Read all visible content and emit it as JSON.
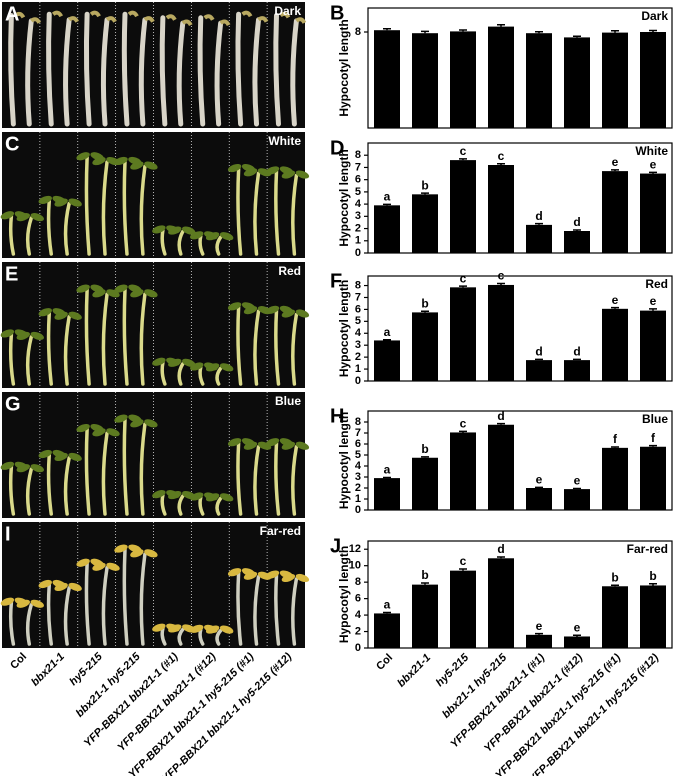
{
  "photo_panels": [
    "A",
    "C",
    "E",
    "G",
    "I"
  ],
  "chart_data": [
    {
      "type": "bar",
      "panel": "B",
      "title": "Dark",
      "y_label": "Hypocotyl length",
      "values": [
        8.15,
        7.9,
        8.05,
        8.45,
        7.9,
        7.55,
        7.95,
        8.0
      ],
      "errors": [
        0.12,
        0.15,
        0.12,
        0.15,
        0.12,
        0.1,
        0.15,
        0.12
      ],
      "ylim": [
        0,
        10
      ],
      "yticks": [
        8
      ],
      "color": "#000000"
    },
    {
      "type": "bar",
      "panel": "D",
      "title": "White",
      "y_label": "Hypocotyl length",
      "values": [
        3.9,
        4.8,
        7.6,
        7.2,
        2.3,
        1.8,
        6.7,
        6.5
      ],
      "errors": [
        0.08,
        0.1,
        0.1,
        0.1,
        0.1,
        0.08,
        0.1,
        0.1
      ],
      "letters": [
        "a",
        "b",
        "c",
        "c",
        "d",
        "d",
        "e",
        "e"
      ],
      "ylim": [
        0,
        9
      ],
      "yticks": [
        0,
        1,
        2,
        3,
        4,
        5,
        6,
        7,
        8
      ],
      "color": "#000000"
    },
    {
      "type": "bar",
      "panel": "F",
      "title": "Red",
      "y_label": "Hypocotyl length",
      "values": [
        3.4,
        5.75,
        7.85,
        8.05,
        1.75,
        1.75,
        6.05,
        5.9
      ],
      "errors": [
        0.06,
        0.1,
        0.1,
        0.12,
        0.06,
        0.06,
        0.1,
        0.15
      ],
      "letters": [
        "a",
        "b",
        "c",
        "c",
        "d",
        "d",
        "e",
        "e"
      ],
      "ylim": [
        0,
        8.8
      ],
      "yticks": [
        0,
        1,
        2,
        3,
        4,
        5,
        6,
        7,
        8
      ],
      "color": "#000000"
    },
    {
      "type": "bar",
      "panel": "H",
      "title": "Blue",
      "y_label": "Hypocotyl length",
      "values": [
        2.9,
        4.75,
        7.05,
        7.75,
        2.0,
        1.9,
        5.65,
        5.75
      ],
      "errors": [
        0.06,
        0.08,
        0.1,
        0.1,
        0.06,
        0.06,
        0.08,
        0.1
      ],
      "letters": [
        "a",
        "b",
        "c",
        "d",
        "e",
        "e",
        "f",
        "f"
      ],
      "ylim": [
        0,
        9
      ],
      "yticks": [
        0,
        1,
        2,
        3,
        4,
        5,
        6,
        7,
        8
      ],
      "color": "#000000"
    },
    {
      "type": "bar",
      "panel": "J",
      "title": "Far-red",
      "y_label": "Hypocotyl length",
      "categories": [
        "Col",
        "bbx21-1",
        "hy5-215",
        "bbx21-1 hy5-215",
        "YFP-BBX21 bbx21-1 (#1)",
        "YFP-BBX21 bbx21-1 (#12)",
        "YFP-BBX21 bbx21-1 hy5-215 (#1)",
        "YFP-BBX21 bbx21-1 hy5-215 (#12)"
      ],
      "values": [
        4.2,
        7.7,
        9.4,
        10.9,
        1.6,
        1.4,
        7.5,
        7.6
      ],
      "errors": [
        0.12,
        0.2,
        0.2,
        0.15,
        0.15,
        0.15,
        0.12,
        0.2
      ],
      "letters": [
        "a",
        "b",
        "c",
        "d",
        "e",
        "e",
        "b",
        "b"
      ],
      "ylim": [
        0,
        13
      ],
      "yticks": [
        0,
        2,
        4,
        6,
        8,
        10,
        12
      ],
      "color": "#000000"
    }
  ]
}
